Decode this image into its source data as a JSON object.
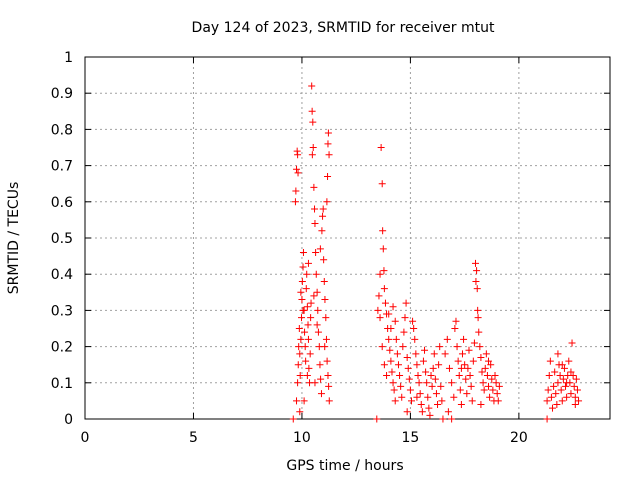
{
  "chart_data": {
    "type": "scatter",
    "title": "Day 124 of 2023, SRMTID for receiver mtut",
    "xlabel": "GPS time / hours",
    "ylabel": "SRMTID / TECUs",
    "xlim": [
      0,
      24.2
    ],
    "ylim": [
      0,
      1
    ],
    "x_ticks": [
      0,
      5,
      10,
      15,
      20
    ],
    "x_tick_labels": [
      "0",
      "5",
      "10",
      "15",
      "20"
    ],
    "y_ticks": [
      0,
      0.1,
      0.2,
      0.3,
      0.4,
      0.5,
      0.6,
      0.7,
      0.8,
      0.9,
      1
    ],
    "y_tick_labels": [
      "0",
      "0.1",
      "0.2",
      "0.3",
      "0.4",
      "0.5",
      "0.6",
      "0.7",
      "0.8",
      "0.9",
      "1"
    ],
    "grid": true,
    "marker": "+",
    "color": "#ff0000",
    "series": [
      {
        "points": [
          [
            9.7,
            0.6
          ],
          [
            9.72,
            0.63
          ],
          [
            9.75,
            0.69
          ],
          [
            9.78,
            0.74
          ],
          [
            9.8,
            0.73
          ],
          [
            9.82,
            0.68
          ],
          [
            9.75,
            0.05
          ],
          [
            9.8,
            0.1
          ],
          [
            9.83,
            0.15
          ],
          [
            9.85,
            0.2
          ],
          [
            9.88,
            0.25
          ],
          [
            9.9,
            0.18
          ],
          [
            9.92,
            0.12
          ],
          [
            9.95,
            0.22
          ],
          [
            9.98,
            0.28
          ],
          [
            10.0,
            0.33
          ],
          [
            10.02,
            0.38
          ],
          [
            10.05,
            0.42
          ],
          [
            10.07,
            0.46
          ],
          [
            10.1,
            0.3
          ],
          [
            10.12,
            0.24
          ],
          [
            10.15,
            0.2
          ],
          [
            10.17,
            0.16
          ],
          [
            10.2,
            0.36
          ],
          [
            10.22,
            0.4
          ],
          [
            10.25,
            0.31
          ],
          [
            10.28,
            0.26
          ],
          [
            10.3,
            0.22
          ],
          [
            10.32,
            0.14
          ],
          [
            10.35,
            0.1
          ],
          [
            10.38,
            0.18
          ],
          [
            10.4,
            0.28
          ],
          [
            10.42,
            0.32
          ],
          [
            10.45,
            0.92
          ],
          [
            10.47,
            0.85
          ],
          [
            10.5,
            0.82
          ],
          [
            10.52,
            0.75
          ],
          [
            10.48,
            0.73
          ],
          [
            10.55,
            0.64
          ],
          [
            10.58,
            0.58
          ],
          [
            10.6,
            0.54
          ],
          [
            10.63,
            0.46
          ],
          [
            10.66,
            0.4
          ],
          [
            10.7,
            0.35
          ],
          [
            10.73,
            0.3
          ],
          [
            10.76,
            0.24
          ],
          [
            10.8,
            0.2
          ],
          [
            10.83,
            0.15
          ],
          [
            10.86,
            0.11
          ],
          [
            10.9,
            0.07
          ],
          [
            10.92,
            0.52
          ],
          [
            10.95,
            0.56
          ],
          [
            10.98,
            0.58
          ],
          [
            11.0,
            0.44
          ],
          [
            11.03,
            0.38
          ],
          [
            11.06,
            0.33
          ],
          [
            11.1,
            0.28
          ],
          [
            11.13,
            0.22
          ],
          [
            11.16,
            0.16
          ],
          [
            11.2,
            0.12
          ],
          [
            11.23,
            0.09
          ],
          [
            11.26,
            0.05
          ],
          [
            11.15,
            0.6
          ],
          [
            11.18,
            0.67
          ],
          [
            11.2,
            0.76
          ],
          [
            11.22,
            0.79
          ],
          [
            11.25,
            0.73
          ],
          [
            10.1,
            0.05
          ],
          [
            10.3,
            0.43
          ],
          [
            10.6,
            0.1
          ],
          [
            10.85,
            0.47
          ],
          [
            10.05,
            0.3
          ],
          [
            9.9,
            0.02
          ],
          [
            10.25,
            0.12
          ],
          [
            10.7,
            0.26
          ],
          [
            11.05,
            0.2
          ],
          [
            9.95,
            0.35
          ],
          [
            10.55,
            0.34
          ],
          [
            13.5,
            0.3
          ],
          [
            13.55,
            0.34
          ],
          [
            13.6,
            0.28
          ],
          [
            13.65,
            0.75
          ],
          [
            13.7,
            0.65
          ],
          [
            13.72,
            0.52
          ],
          [
            13.75,
            0.47
          ],
          [
            13.78,
            0.41
          ],
          [
            13.8,
            0.36
          ],
          [
            13.85,
            0.32
          ],
          [
            13.9,
            0.29
          ],
          [
            13.95,
            0.25
          ],
          [
            14.0,
            0.22
          ],
          [
            14.05,
            0.19
          ],
          [
            14.1,
            0.16
          ],
          [
            14.15,
            0.13
          ],
          [
            14.2,
            0.1
          ],
          [
            14.25,
            0.08
          ],
          [
            13.6,
            0.4
          ],
          [
            13.7,
            0.2
          ],
          [
            13.8,
            0.15
          ],
          [
            13.9,
            0.12
          ],
          [
            14.0,
            0.29
          ],
          [
            14.1,
            0.25
          ],
          [
            14.2,
            0.31
          ],
          [
            14.3,
            0.27
          ],
          [
            14.35,
            0.22
          ],
          [
            14.4,
            0.18
          ],
          [
            14.45,
            0.15
          ],
          [
            14.5,
            0.12
          ],
          [
            14.55,
            0.09
          ],
          [
            14.6,
            0.06
          ],
          [
            14.65,
            0.2
          ],
          [
            14.7,
            0.24
          ],
          [
            14.75,
            0.28
          ],
          [
            14.8,
            0.32
          ],
          [
            14.85,
            0.17
          ],
          [
            14.9,
            0.14
          ],
          [
            14.95,
            0.11
          ],
          [
            15.0,
            0.08
          ],
          [
            15.05,
            0.05
          ],
          [
            15.1,
            0.27
          ],
          [
            15.15,
            0.25
          ],
          [
            15.2,
            0.22
          ],
          [
            15.25,
            0.18
          ],
          [
            15.3,
            0.15
          ],
          [
            15.35,
            0.12
          ],
          [
            15.4,
            0.1
          ],
          [
            15.45,
            0.07
          ],
          [
            15.5,
            0.04
          ],
          [
            15.55,
            0.02
          ],
          [
            15.6,
            0.16
          ],
          [
            15.65,
            0.19
          ],
          [
            15.7,
            0.13
          ],
          [
            15.75,
            0.1
          ],
          [
            15.8,
            0.06
          ],
          [
            15.85,
            0.03
          ],
          [
            15.9,
            0.01
          ],
          [
            15.95,
            0.12
          ],
          [
            16.0,
            0.09
          ],
          [
            16.05,
            0.14
          ],
          [
            16.1,
            0.18
          ],
          [
            16.15,
            0.11
          ],
          [
            16.2,
            0.07
          ],
          [
            16.25,
            0.04
          ],
          [
            16.3,
            0.15
          ],
          [
            16.35,
            0.2
          ],
          [
            16.4,
            0.09
          ],
          [
            16.45,
            0.05
          ],
          [
            14.3,
            0.05
          ],
          [
            14.85,
            0.02
          ],
          [
            15.3,
            0.06
          ],
          [
            16.6,
            0.18
          ],
          [
            16.7,
            0.22
          ],
          [
            16.8,
            0.14
          ],
          [
            16.9,
            0.1
          ],
          [
            17.0,
            0.06
          ],
          [
            17.05,
            0.25
          ],
          [
            17.1,
            0.27
          ],
          [
            17.15,
            0.2
          ],
          [
            17.2,
            0.16
          ],
          [
            17.25,
            0.12
          ],
          [
            17.3,
            0.08
          ],
          [
            17.35,
            0.04
          ],
          [
            17.4,
            0.18
          ],
          [
            17.45,
            0.22
          ],
          [
            17.5,
            0.15
          ],
          [
            17.55,
            0.11
          ],
          [
            17.6,
            0.07
          ],
          [
            17.65,
            0.14
          ],
          [
            17.7,
            0.19
          ],
          [
            17.75,
            0.12
          ],
          [
            17.8,
            0.09
          ],
          [
            17.85,
            0.05
          ],
          [
            17.9,
            0.16
          ],
          [
            17.95,
            0.21
          ],
          [
            18.0,
            0.43
          ],
          [
            18.05,
            0.41
          ],
          [
            18.02,
            0.38
          ],
          [
            18.08,
            0.36
          ],
          [
            18.1,
            0.3
          ],
          [
            18.12,
            0.28
          ],
          [
            18.15,
            0.24
          ],
          [
            18.2,
            0.2
          ],
          [
            18.25,
            0.17
          ],
          [
            18.3,
            0.13
          ],
          [
            18.35,
            0.1
          ],
          [
            18.4,
            0.08
          ],
          [
            18.45,
            0.14
          ],
          [
            18.5,
            0.18
          ],
          [
            18.55,
            0.12
          ],
          [
            18.6,
            0.09
          ],
          [
            18.65,
            0.06
          ],
          [
            18.7,
            0.15
          ],
          [
            18.75,
            0.11
          ],
          [
            18.8,
            0.08
          ],
          [
            18.85,
            0.05
          ],
          [
            18.9,
            0.12
          ],
          [
            18.95,
            0.1
          ],
          [
            19.0,
            0.07
          ],
          [
            19.05,
            0.05
          ],
          [
            19.1,
            0.09
          ],
          [
            16.75,
            0.02
          ],
          [
            17.35,
            0.14
          ],
          [
            18.25,
            0.04
          ],
          [
            18.6,
            0.16
          ],
          [
            21.3,
            0.05
          ],
          [
            21.35,
            0.08
          ],
          [
            21.4,
            0.12
          ],
          [
            21.45,
            0.16
          ],
          [
            21.5,
            0.06
          ],
          [
            21.55,
            0.03
          ],
          [
            21.6,
            0.09
          ],
          [
            21.65,
            0.13
          ],
          [
            21.7,
            0.07
          ],
          [
            21.75,
            0.04
          ],
          [
            21.8,
            0.1
          ],
          [
            21.85,
            0.15
          ],
          [
            21.9,
            0.12
          ],
          [
            21.95,
            0.08
          ],
          [
            22.0,
            0.05
          ],
          [
            22.05,
            0.11
          ],
          [
            22.1,
            0.14
          ],
          [
            22.15,
            0.09
          ],
          [
            22.2,
            0.06
          ],
          [
            22.25,
            0.12
          ],
          [
            22.3,
            0.16
          ],
          [
            22.35,
            0.1
          ],
          [
            22.4,
            0.07
          ],
          [
            22.45,
            0.21
          ],
          [
            22.5,
            0.12
          ],
          [
            22.55,
            0.09
          ],
          [
            22.6,
            0.06
          ],
          [
            22.65,
            0.11
          ],
          [
            22.7,
            0.08
          ],
          [
            22.75,
            0.05
          ],
          [
            21.8,
            0.18
          ],
          [
            22.0,
            0.15
          ],
          [
            22.2,
            0.1
          ],
          [
            22.4,
            0.13
          ],
          [
            22.6,
            0.04
          ]
        ]
      },
      {
        "points": [
          [
            9.6,
            0.0
          ],
          [
            13.45,
            0.0
          ],
          [
            16.5,
            0.0
          ],
          [
            16.9,
            0.0
          ],
          [
            21.3,
            0.0
          ]
        ]
      }
    ]
  }
}
